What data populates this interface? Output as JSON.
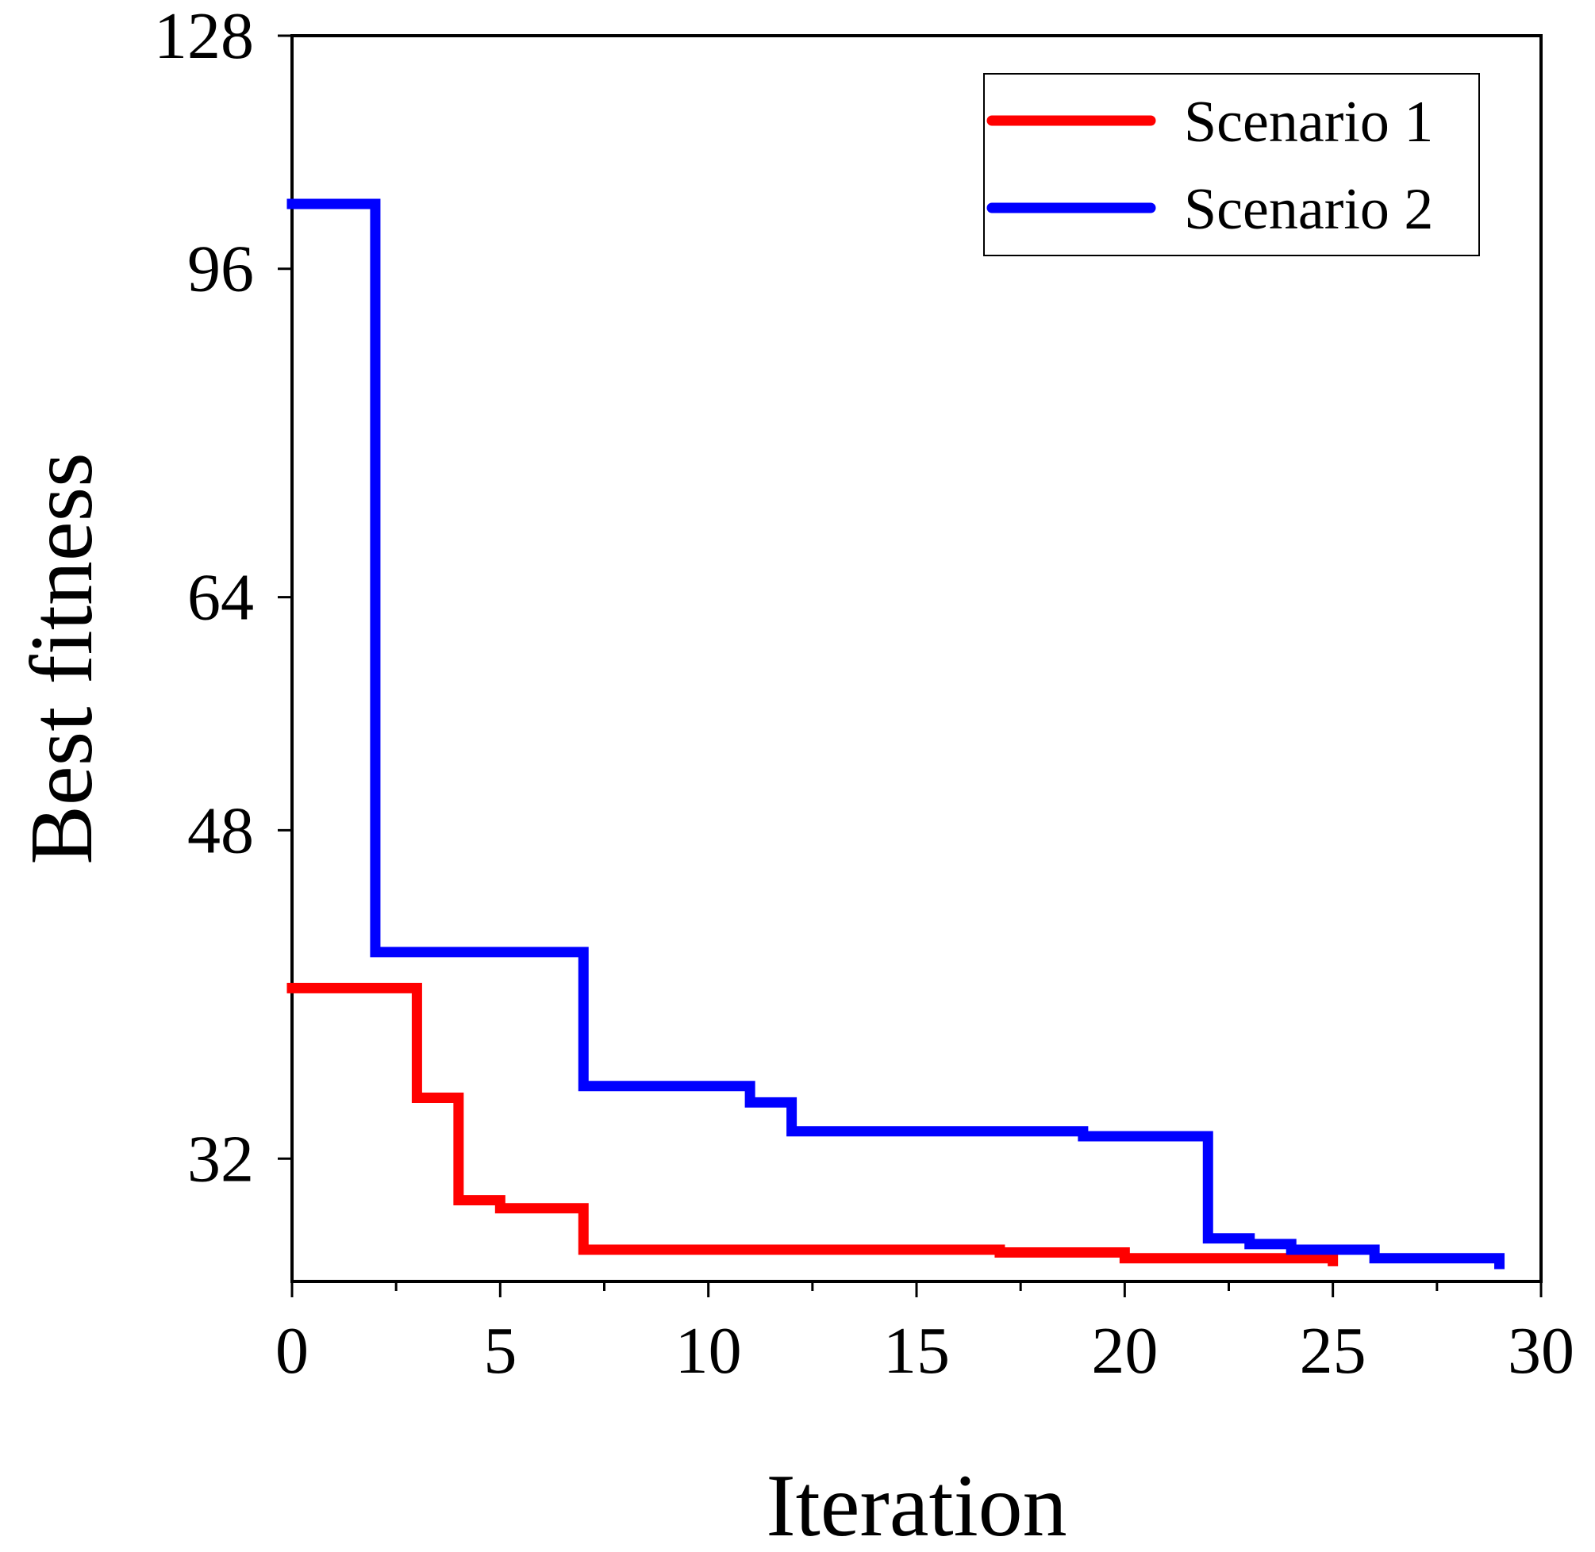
{
  "chart_data": {
    "type": "line",
    "step": true,
    "title": "",
    "xlabel": "Iteration",
    "ylabel": "Best fitness",
    "y_scale": "log2",
    "xlim": [
      0,
      30
    ],
    "ylim": [
      27.5,
      128
    ],
    "x_ticks": [
      0,
      5,
      10,
      15,
      20,
      25,
      30
    ],
    "x_tick_labels": [
      "0",
      "5",
      "10",
      "15",
      "20",
      "25",
      "30"
    ],
    "y_ticks": [
      32,
      48,
      64,
      96,
      128
    ],
    "y_tick_labels": [
      "32",
      "48",
      "64",
      "96",
      "128"
    ],
    "grid": false,
    "legend_position": "top-right",
    "series": [
      {
        "name": "Scenario 1",
        "color": "#ff0000",
        "x": [
          0,
          3,
          4,
          5,
          7,
          17,
          20,
          25
        ],
        "y": [
          39.5,
          34.5,
          30.4,
          30.1,
          28.6,
          28.5,
          28.3,
          28.2
        ]
      },
      {
        "name": "Scenario 2",
        "color": "#0000ff",
        "x": [
          0,
          2,
          7,
          11,
          12,
          19,
          22,
          23,
          24,
          26,
          29
        ],
        "y": [
          104,
          41.3,
          35.0,
          34.3,
          33.1,
          32.9,
          29.0,
          28.8,
          28.6,
          28.3,
          28.1
        ]
      }
    ]
  }
}
